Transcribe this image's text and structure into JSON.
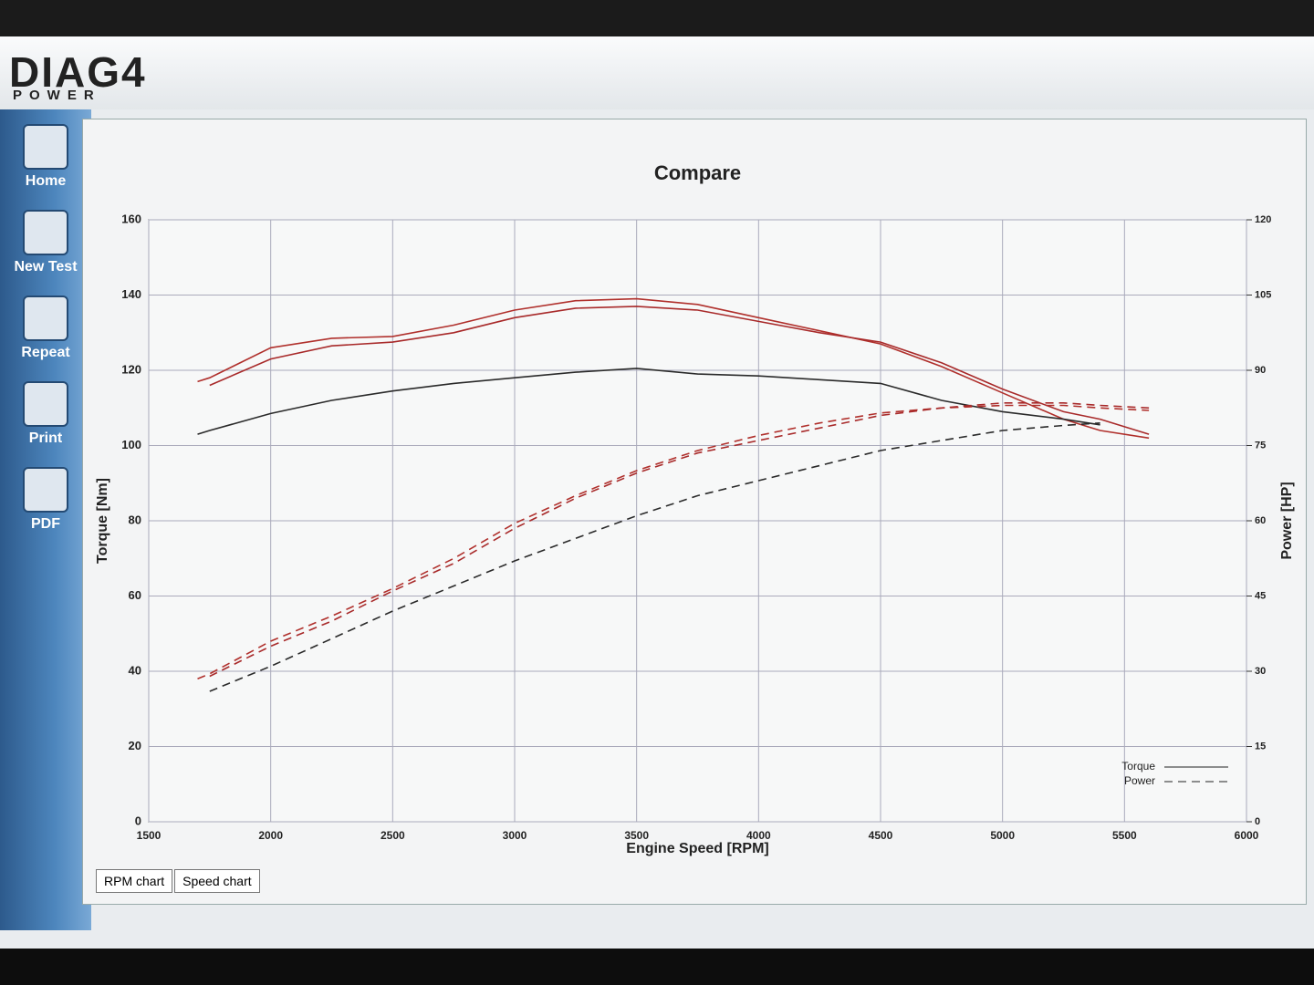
{
  "app": {
    "logo": "DIAG4",
    "logo_sub": "POWER"
  },
  "sidebar": [
    {
      "label": "Home"
    },
    {
      "label": "New Test"
    },
    {
      "label": "Repeat"
    },
    {
      "label": "Print"
    },
    {
      "label": "PDF"
    }
  ],
  "tabs": [
    "RPM chart",
    "Speed chart"
  ],
  "chart_data": {
    "type": "line",
    "title": "Compare",
    "x_label": "Engine Speed [RPM]",
    "y_label": "Torque [Nm]",
    "y2_label": "Power [HP]",
    "x": [
      1700,
      1750,
      2000,
      2250,
      2500,
      2750,
      3000,
      3250,
      3500,
      3750,
      4000,
      4250,
      4500,
      4750,
      5000,
      5250,
      5400,
      5600
    ],
    "xlim": [
      1500,
      6000
    ],
    "xticks": [
      1500,
      2000,
      2500,
      3000,
      3500,
      4000,
      4500,
      5000,
      5500,
      6000
    ],
    "ylim": [
      0,
      160
    ],
    "yticks": [
      0,
      20,
      40,
      60,
      80,
      100,
      120,
      140,
      160
    ],
    "y2lim": [
      0,
      120
    ],
    "y2ticks": [
      0,
      15,
      30,
      45,
      60,
      75,
      90,
      105,
      120
    ],
    "grid": true,
    "legend_position": "lower right",
    "legend": [
      {
        "label": "Torque",
        "dash": false
      },
      {
        "label": "Power",
        "dash": true
      }
    ],
    "series": [
      {
        "color": "#b0302c",
        "dash": false,
        "values": [
          117,
          118,
          126,
          128.5,
          129,
          132,
          136,
          138.5,
          139,
          137.5,
          134,
          130.5,
          127,
          121,
          114,
          107,
          104,
          102
        ]
      },
      {
        "color": "#a82a2a",
        "dash": false,
        "values": [
          null,
          116,
          123,
          126.5,
          127.5,
          130,
          134,
          136.5,
          137,
          136,
          133,
          130,
          127.5,
          122,
          115,
          109,
          107,
          103
        ]
      },
      {
        "color": "#2a2a2a",
        "dash": false,
        "values": [
          103,
          104,
          108.5,
          112,
          114.5,
          116.5,
          118,
          119.5,
          120.5,
          119,
          118.5,
          117.5,
          116.5,
          112,
          109,
          107,
          105.5,
          null
        ]
      },
      {
        "color": "#b0302c",
        "dash": true,
        "axis": "y2",
        "values": [
          28.5,
          29.5,
          36,
          41,
          46.5,
          52.5,
          59.5,
          65,
          70,
          74,
          77,
          79.5,
          81.5,
          82.5,
          83,
          83,
          82.5,
          82
        ]
      },
      {
        "color": "#a82a2a",
        "dash": true,
        "axis": "y2",
        "values": [
          null,
          29,
          35,
          40,
          46,
          51.5,
          58.5,
          64.5,
          69.5,
          73.5,
          76,
          78.5,
          81,
          82.5,
          83.5,
          83.5,
          83,
          82.5
        ]
      },
      {
        "color": "#2a2a2a",
        "dash": true,
        "axis": "y2",
        "values": [
          null,
          26,
          31,
          36.5,
          42,
          47,
          52,
          56.5,
          61,
          65,
          68,
          71,
          74,
          76,
          78,
          79,
          79.5,
          null
        ]
      }
    ]
  }
}
